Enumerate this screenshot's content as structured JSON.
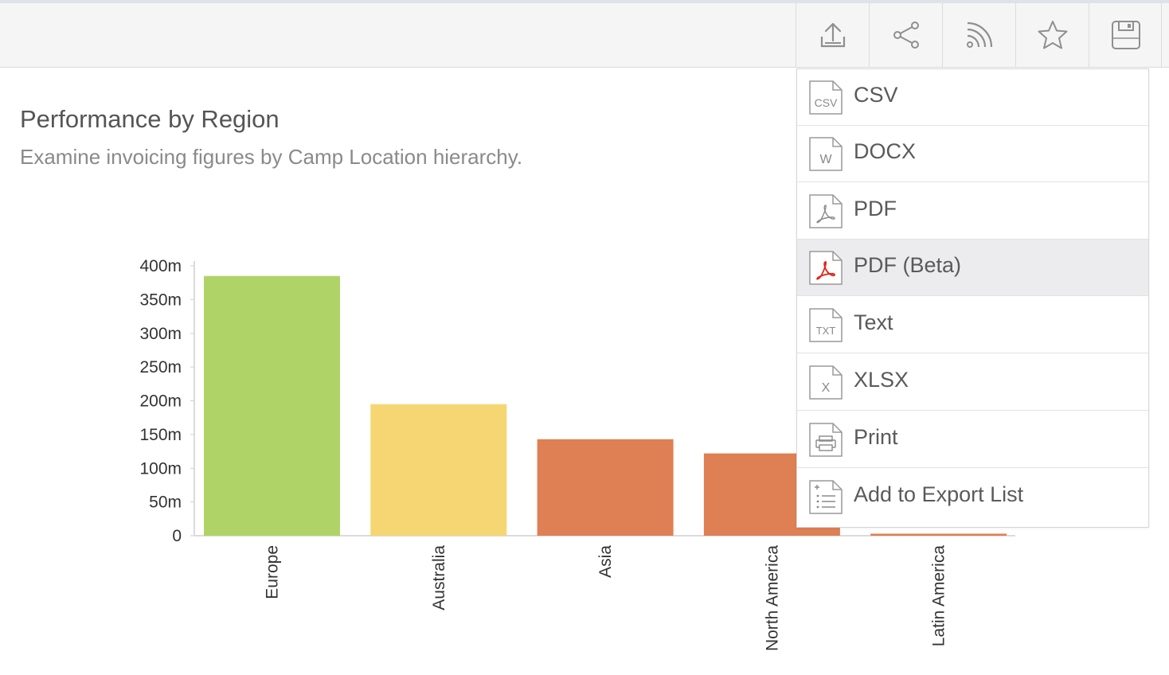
{
  "toolbar": {
    "buttons": [
      {
        "name": "export",
        "icon": "upload-icon"
      },
      {
        "name": "share",
        "icon": "share-icon"
      },
      {
        "name": "rss",
        "icon": "rss-icon"
      },
      {
        "name": "favorite",
        "icon": "star-icon"
      },
      {
        "name": "save",
        "icon": "save-icon"
      }
    ]
  },
  "report": {
    "title": "Performance by Region",
    "subtitle": "Examine invoicing figures by Camp Location hierarchy."
  },
  "chart_data": {
    "type": "bar",
    "categories": [
      "Europe",
      "Australia",
      "Asia",
      "North America",
      "Latin America"
    ],
    "values": [
      385,
      195,
      143,
      122,
      3
    ],
    "colors": [
      "#b0d367",
      "#f6d672",
      "#de7f54",
      "#de7f54",
      "#de7f54"
    ],
    "yticks": [
      "0",
      "50m",
      "100m",
      "150m",
      "200m",
      "250m",
      "300m",
      "350m",
      "400m"
    ],
    "ylim": [
      0,
      400
    ],
    "title": "",
    "xlabel": "",
    "ylabel": "",
    "grid": false
  },
  "export_menu": {
    "items": [
      {
        "label": "CSV",
        "icon": "csv-file-icon",
        "badge": "CSV"
      },
      {
        "label": "DOCX",
        "icon": "docx-file-icon",
        "badge": "W"
      },
      {
        "label": "PDF",
        "icon": "pdf-file-icon",
        "badge": ""
      },
      {
        "label": "PDF (Beta)",
        "icon": "pdf-beta-file-icon",
        "badge": ""
      },
      {
        "label": "Text",
        "icon": "txt-file-icon",
        "badge": "TXT"
      },
      {
        "label": "XLSX",
        "icon": "xlsx-file-icon",
        "badge": "X"
      },
      {
        "label": "Print",
        "icon": "print-icon",
        "badge": ""
      },
      {
        "label": "Add to Export List",
        "icon": "export-list-icon",
        "badge": ""
      }
    ],
    "active_index": 3,
    "accent_color": "#e2231a"
  }
}
